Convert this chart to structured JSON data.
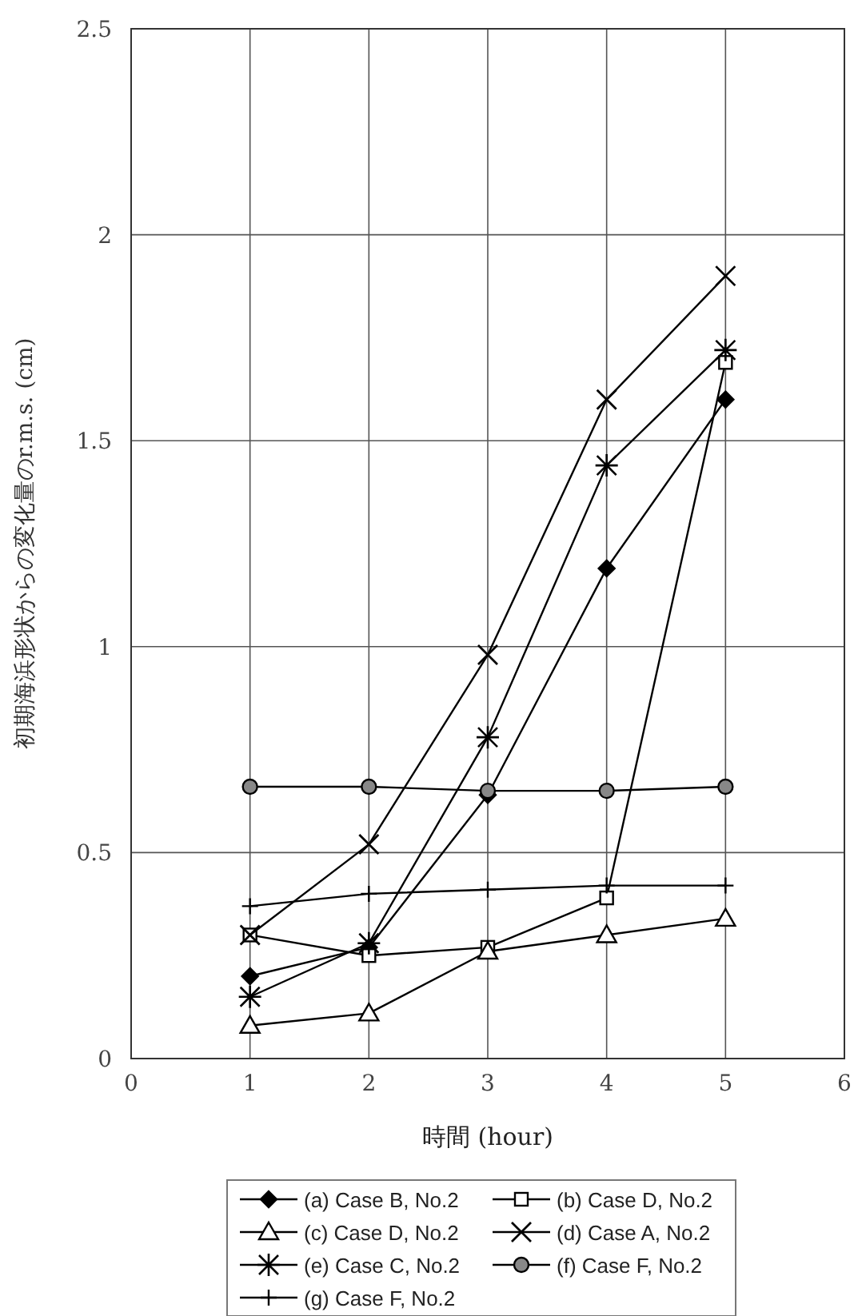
{
  "chart_data": {
    "type": "line",
    "xlabel": "時間 (hour)",
    "ylabel": "初期海浜形状からの変化量のr.m.s. (cm)",
    "x": [
      1,
      2,
      3,
      4,
      5
    ],
    "xlim": [
      0,
      6
    ],
    "xticks": [
      0,
      1,
      2,
      3,
      4,
      5,
      6
    ],
    "ylim": [
      0,
      2.5
    ],
    "yticks": [
      0,
      0.5,
      1,
      1.5,
      2,
      2.5
    ],
    "grid": true,
    "legend": "bottom",
    "line_style": "solid",
    "series": [
      {
        "name": "(a) Case B, No.2",
        "color": "#000000",
        "marker": "diamond",
        "values": [
          0.2,
          0.27,
          0.64,
          1.19,
          1.6
        ]
      },
      {
        "name": "(b) Case D, No.2",
        "color": "#000000",
        "marker": "square",
        "values": [
          0.3,
          0.25,
          0.27,
          0.39,
          1.69
        ]
      },
      {
        "name": "(c) Case D, No.2",
        "color": "#000000",
        "marker": "triangle",
        "values": [
          0.08,
          0.11,
          0.26,
          0.3,
          0.34
        ]
      },
      {
        "name": "(d) Case A, No.2",
        "color": "#000000",
        "marker": "cross",
        "values": [
          0.3,
          0.52,
          0.98,
          1.6,
          1.9
        ]
      },
      {
        "name": "(e) Case C, No.2",
        "color": "#000000",
        "marker": "cross",
        "values": [
          0.15,
          0.28,
          0.78,
          1.44,
          1.72
        ]
      },
      {
        "name": "(f) Case F, No.2",
        "color": "#000000",
        "marker": "circle",
        "values": [
          0.66,
          0.66,
          0.65,
          0.65,
          0.66
        ]
      },
      {
        "name": "(g) Case F, No.2",
        "color": "#000000",
        "marker": "cross",
        "values": [
          0.37,
          0.4,
          0.41,
          0.42,
          0.42
        ]
      }
    ]
  }
}
